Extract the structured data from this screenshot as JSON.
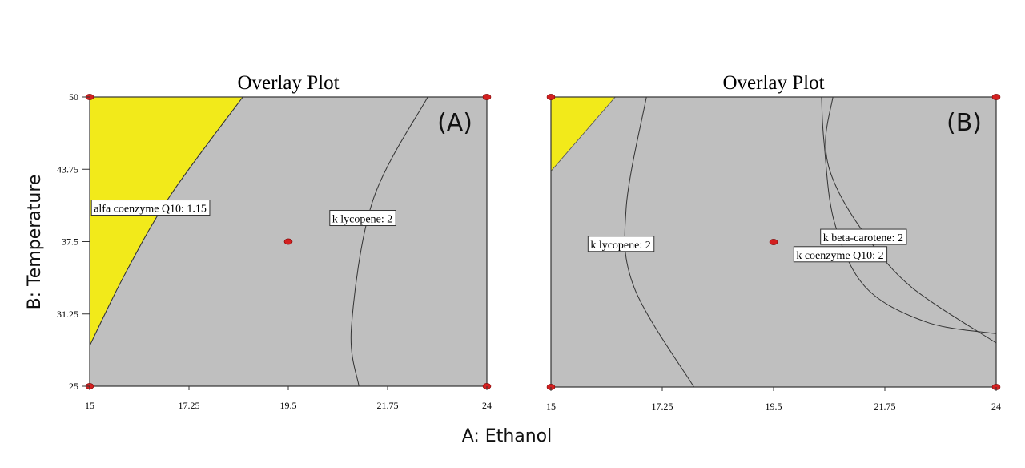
{
  "chart_data": {
    "type": "contour",
    "xlabel": "A: Ethanol",
    "ylabel": "B: Temperature",
    "colors": {
      "region": "#bfbfbf",
      "sweet_spot": "#f2ea1a",
      "design_point": "#d42020",
      "contour": "#333333"
    },
    "panels": [
      {
        "id": "A",
        "title": "Overlay Plot",
        "panel_label": "(A)",
        "xlim": [
          15,
          24
        ],
        "ylim": [
          25,
          50
        ],
        "xticks": [
          "15",
          "17.25",
          "19.5",
          "21.75",
          "24"
        ],
        "yticks": [
          "50",
          "43.75",
          "37.5",
          "31.25",
          "25"
        ],
        "show_yticks": true,
        "yellow_region": [
          [
            15,
            50
          ],
          [
            18.47,
            50
          ],
          [
            16.83,
            41.5
          ],
          [
            15.8,
            34.7
          ],
          [
            15,
            28.5
          ]
        ],
        "contours": [
          {
            "name": "alfa coenzyme Q10",
            "label": "alfa coenzyme Q10: 1.15",
            "points": [
              [
                18.47,
                50
              ],
              [
                16.83,
                41.5
              ],
              [
                15.8,
                34.7
              ],
              [
                15,
                28.5
              ]
            ],
            "label_at": [
              15.04,
              41.1
            ]
          },
          {
            "name": "k lycopene",
            "label": "k lycopene: 2",
            "points": [
              [
                22.66,
                50
              ],
              [
                21.42,
                41.1
              ],
              [
                20.93,
                30.1
              ],
              [
                21.1,
                25
              ]
            ],
            "label_at": [
              20.44,
              40.2
            ]
          }
        ],
        "design_points": [
          [
            15,
            50
          ],
          [
            24,
            50
          ],
          [
            19.5,
            37.5
          ],
          [
            15,
            25
          ],
          [
            24,
            25
          ]
        ]
      },
      {
        "id": "B",
        "title": "Overlay Plot",
        "panel_label": "(B)",
        "xlim": [
          15,
          24
        ],
        "ylim": [
          25,
          50
        ],
        "xticks": [
          "15",
          "17.25",
          "19.5",
          "21.75",
          "24"
        ],
        "yticks": [],
        "show_yticks": false,
        "yellow_region": [
          [
            15,
            50
          ],
          [
            16.3,
            50
          ],
          [
            15,
            43.6
          ]
        ],
        "contours": [
          {
            "name": "k lycopene",
            "label": "k lycopene: 2",
            "points": [
              [
                16.93,
                50
              ],
              [
                16.52,
                40.4
              ],
              [
                16.68,
                33.6
              ],
              [
                17.89,
                25
              ]
            ],
            "label_at": [
              15.75,
              38.0
            ]
          },
          {
            "name": "k beta-carotene",
            "label": "k beta-carotene: 2",
            "points": [
              [
                20.7,
                50
              ],
              [
                20.55,
                46.1
              ],
              [
                20.73,
                42.6
              ],
              [
                21.36,
                38.1
              ],
              [
                22.29,
                33.6
              ],
              [
                24,
                28.8
              ]
            ],
            "label_at": [
              20.45,
              38.6
            ]
          },
          {
            "name": "k coenzyme Q10",
            "label": "k coenzyme Q10: 2",
            "points": [
              [
                20.47,
                50
              ],
              [
                20.52,
                46.1
              ],
              [
                20.73,
                39.2
              ],
              [
                21.36,
                33.6
              ],
              [
                22.59,
                30.6
              ],
              [
                24,
                29.6
              ]
            ],
            "label_at": [
              19.91,
              37.1
            ]
          }
        ],
        "design_points": [
          [
            15,
            50
          ],
          [
            24,
            50
          ],
          [
            19.5,
            37.5
          ],
          [
            15,
            25
          ],
          [
            24,
            25
          ]
        ]
      }
    ]
  }
}
